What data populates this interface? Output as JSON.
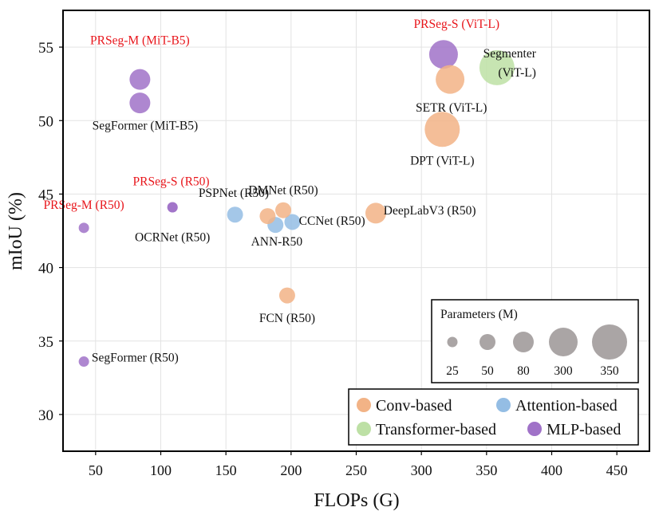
{
  "chart_data": {
    "type": "scatter",
    "title": "",
    "xlabel": "FLOPs (G)",
    "ylabel": "mIoU (%)",
    "xlim": [
      25,
      475
    ],
    "ylim": [
      27.5,
      57.5
    ],
    "xticks": [
      50,
      100,
      150,
      200,
      250,
      300,
      350,
      400,
      450
    ],
    "yticks": [
      30,
      35,
      40,
      45,
      50,
      55
    ],
    "grid": true,
    "legend_position": "bottom-right",
    "categories": [
      {
        "key": "conv",
        "name": "Conv-based",
        "color": "#f2b386"
      },
      {
        "key": "attn",
        "name": "Attention-based",
        "color": "#94bde4"
      },
      {
        "key": "trans",
        "name": "Transformer-based",
        "color": "#bde0a5"
      },
      {
        "key": "mlp",
        "name": "MLP-based",
        "color": "#a072c8"
      }
    ],
    "points": [
      {
        "label": "PRSeg-M (R50)",
        "x": 41,
        "y": 42.7,
        "params": 25,
        "cat": "mlp",
        "highlight": true
      },
      {
        "label": "SegFormer (R50)",
        "x": 41,
        "y": 33.6,
        "params": 25,
        "cat": "mlp",
        "highlight": false
      },
      {
        "label": "PRSeg-S (R50)",
        "x": 109,
        "y": 44.1,
        "params": 25,
        "cat": "mlp",
        "highlight": true
      },
      {
        "label": "OCRNet (R50)",
        "x": 109,
        "y": 44.1,
        "params": 25,
        "cat": "mlp",
        "highlight": false
      },
      {
        "label": "PRSeg-M (MiT-B5)",
        "x": 84,
        "y": 52.8,
        "params": 80,
        "cat": "mlp",
        "highlight": true
      },
      {
        "label": "SegFormer (MiT-B5)",
        "x": 84,
        "y": 51.2,
        "params": 80,
        "cat": "mlp",
        "highlight": false
      },
      {
        "label": "PSPNet (R50)",
        "x": 157,
        "y": 43.6,
        "params": 50,
        "cat": "attn",
        "highlight": false
      },
      {
        "label": "ANN-R50",
        "x": 188,
        "y": 42.9,
        "params": 50,
        "cat": "attn",
        "highlight": false
      },
      {
        "label": "CCNet (R50)",
        "x": 201,
        "y": 43.1,
        "params": 50,
        "cat": "attn",
        "highlight": false
      },
      {
        "label": "DMNet (R50)",
        "x": 182,
        "y": 43.5,
        "params": 50,
        "cat": "conv",
        "highlight": false
      },
      {
        "label": "DMNet (R50)",
        "x": 194,
        "y": 43.9,
        "params": 50,
        "cat": "conv",
        "highlight": false
      },
      {
        "label": "DeepLabV3 (R50)",
        "x": 265,
        "y": 43.7,
        "params": 80,
        "cat": "conv",
        "highlight": false
      },
      {
        "label": "FCN (R50)",
        "x": 197,
        "y": 38.1,
        "params": 50,
        "cat": "conv",
        "highlight": false
      },
      {
        "label": "PRSeg-S (ViT-L)",
        "x": 317,
        "y": 54.5,
        "params": 300,
        "cat": "mlp",
        "highlight": true
      },
      {
        "label": "SETR (ViT-L)",
        "x": 322,
        "y": 52.8,
        "params": 300,
        "cat": "conv",
        "highlight": false
      },
      {
        "label": "Segmenter (ViT-L)",
        "x": 358,
        "y": 53.6,
        "params": 350,
        "cat": "trans",
        "highlight": false
      },
      {
        "label": "DPT (ViT-L)",
        "x": 316,
        "y": 49.4,
        "params": 350,
        "cat": "conv",
        "highlight": false
      }
    ],
    "point_labels": [
      {
        "text": "PRSeg-M (R50)",
        "red": true
      },
      {
        "text": "SegFormer (R50)",
        "red": false
      },
      {
        "text": "PRSeg-S (R50)",
        "red": true
      },
      {
        "text": "OCRNet (R50)",
        "red": false
      },
      {
        "text": "PRSeg-M (MiT-B5)",
        "red": true
      },
      {
        "text": "SegFormer (MiT-B5)",
        "red": false
      },
      {
        "text": "PSPNet (R50)",
        "red": false
      },
      {
        "text": "DMNet (R50)",
        "red": false
      },
      {
        "text": "ANN-R50",
        "red": false
      },
      {
        "text": "CCNet (R50)",
        "red": false
      },
      {
        "text": "DeepLabV3 (R50)",
        "red": false
      },
      {
        "text": "FCN (R50)",
        "red": false
      },
      {
        "text": "PRSeg-S (ViT-L)",
        "red": true
      },
      {
        "text": "Segmenter",
        "red": false
      },
      {
        "text": "(ViT-L)",
        "red": false
      },
      {
        "text": "SETR (ViT-L)",
        "red": false
      },
      {
        "text": "DPT (ViT-L)",
        "red": false
      }
    ],
    "size_legend": {
      "title": "Parameters (M)",
      "entries": [
        25,
        50,
        80,
        300,
        350
      ],
      "color": "#aaa5a5"
    },
    "colors": {
      "highlight_text": "#e8151b",
      "text": "#111111",
      "axis": "#000000",
      "grid": "#e3e3e3"
    }
  }
}
